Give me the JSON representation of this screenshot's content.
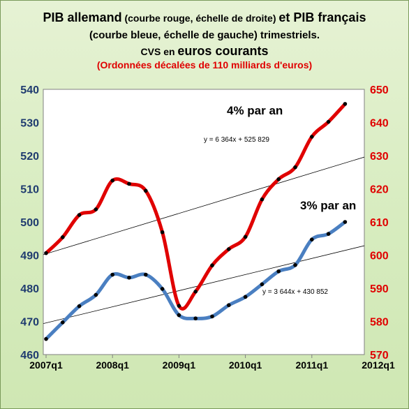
{
  "title": {
    "line1_a": "PIB allemand",
    "line1_b": " (courbe rouge, échelle de droite) ",
    "line1_c": "et PIB français",
    "line2_a": "(courbe bleue, échelle de gauche) ",
    "line2_b": "trimestriels.",
    "line3_a": "CVS en ",
    "line3_b": "euros courants",
    "line4": "(Ordonnées décalées de 110 milliards d'euros)"
  },
  "colors": {
    "germany": "#e00000",
    "france": "#4a7fc1",
    "left_axis": "#1f3b6f",
    "right_axis": "#e00000"
  },
  "chart_data": {
    "type": "line",
    "x": [
      "2007q1",
      "2007q2",
      "2007q3",
      "2007q4",
      "2008q1",
      "2008q2",
      "2008q3",
      "2008q4",
      "2009q1",
      "2009q2",
      "2009q3",
      "2009q4",
      "2010q1",
      "2010q2",
      "2010q3",
      "2010q4",
      "2011q1",
      "2011q2",
      "2011q3"
    ],
    "x_tick_labels": [
      "2007q1",
      "2008q1",
      "2009q1",
      "2010q1",
      "2011q1",
      "2012q1"
    ],
    "y_left": {
      "ylim": [
        460,
        540
      ],
      "ticks": [
        460,
        470,
        480,
        490,
        500,
        510,
        520,
        530,
        540
      ]
    },
    "y_right": {
      "ylim": [
        570,
        650
      ],
      "ticks": [
        570,
        580,
        590,
        600,
        610,
        620,
        630,
        640,
        650
      ]
    },
    "series": [
      {
        "axis": "right",
        "values": [
          600.6,
          605.4,
          612.1,
          613.8,
          622.5,
          621.5,
          619.4,
          606.9,
          584.7,
          589.0,
          596.9,
          601.8,
          605.5,
          616.8,
          622.9,
          626.5,
          635.7,
          640.2,
          645.6
        ]
      },
      {
        "axis": "left",
        "values": [
          464.7,
          469.7,
          474.6,
          478.0,
          484.1,
          483.2,
          484.1,
          479.8,
          471.9,
          470.9,
          471.5,
          474.9,
          477.4,
          481.2,
          485.1,
          487.0,
          494.7,
          496.4,
          500.0
        ]
      }
    ],
    "trendlines": [
      {
        "axis": "right",
        "equation": "y = 6 364x + 525 829",
        "label": "4% par an"
      },
      {
        "axis": "left",
        "equation": "y = 3 644x + 430 852",
        "label": "3% par an"
      }
    ]
  }
}
